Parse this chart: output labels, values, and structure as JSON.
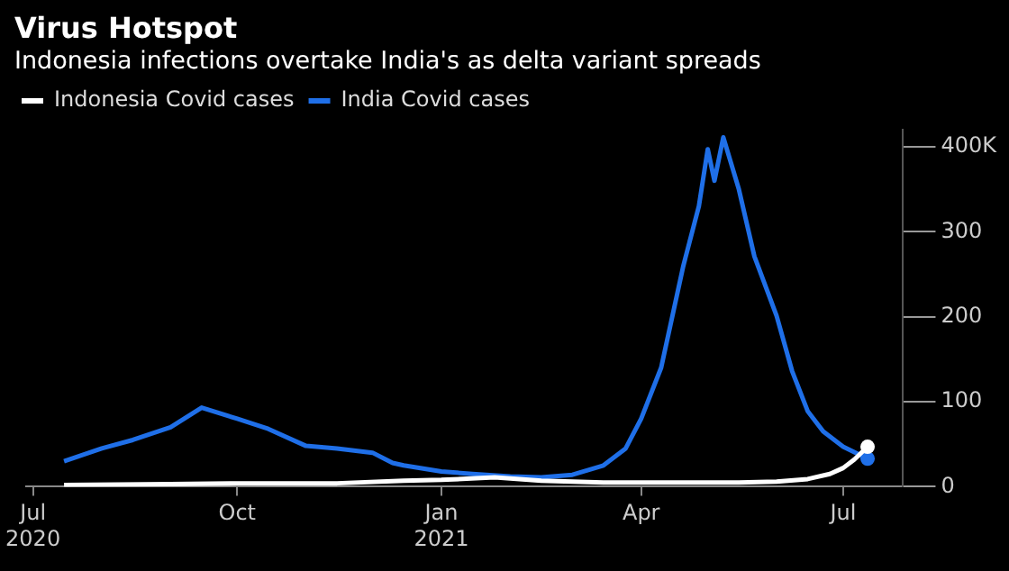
{
  "chart_data": {
    "type": "line",
    "title": "Virus Hotspot",
    "subtitle": "Indonesia infections overtake India's as delta variant spreads",
    "xlim": [
      "2020-06-28",
      "2021-07-28"
    ],
    "xticks": [
      {
        "value": "2020-07-01",
        "label": "Jul 2020"
      },
      {
        "value": "2020-10-01",
        "label": "Oct"
      },
      {
        "value": "2021-01-01",
        "label": "Jan 2021"
      },
      {
        "value": "2021-04-01",
        "label": "Apr"
      },
      {
        "value": "2021-07-01",
        "label": "Jul"
      }
    ],
    "ylim": [
      0,
      420
    ],
    "yticks": [
      0,
      100,
      200,
      300,
      {
        "value": 400,
        "label": "400K"
      }
    ],
    "legend": "top left",
    "grid": false,
    "series": [
      {
        "name": "Indonesia Covid cases",
        "color": "#ffffff",
        "x": [
          "2020-07-15",
          "2020-09-01",
          "2020-10-01",
          "2020-11-15",
          "2020-12-15",
          "2021-01-01",
          "2021-01-25",
          "2021-02-15",
          "2021-03-15",
          "2021-04-15",
          "2021-05-15",
          "2021-06-01",
          "2021-06-15",
          "2021-06-25",
          "2021-07-01",
          "2021-07-06",
          "2021-07-12"
        ],
        "values": [
          2,
          3,
          4,
          4,
          7,
          8,
          11,
          7,
          5,
          5,
          5,
          6,
          9,
          15,
          22,
          32,
          47
        ]
      },
      {
        "name": "India Covid cases",
        "color": "#1f6fe8",
        "x": [
          "2020-07-15",
          "2020-08-01",
          "2020-08-15",
          "2020-09-01",
          "2020-09-15",
          "2020-10-01",
          "2020-10-15",
          "2020-11-01",
          "2020-11-15",
          "2020-12-01",
          "2020-12-10",
          "2020-12-15",
          "2021-01-01",
          "2021-01-15",
          "2021-02-01",
          "2021-02-15",
          "2021-03-01",
          "2021-03-15",
          "2021-03-25",
          "2021-04-01",
          "2021-04-10",
          "2021-04-20",
          "2021-04-27",
          "2021-05-01",
          "2021-05-04",
          "2021-05-08",
          "2021-05-15",
          "2021-05-22",
          "2021-06-01",
          "2021-06-08",
          "2021-06-15",
          "2021-06-22",
          "2021-07-01",
          "2021-07-12"
        ],
        "values": [
          30,
          45,
          55,
          70,
          93,
          80,
          68,
          48,
          45,
          40,
          28,
          25,
          18,
          15,
          12,
          11,
          14,
          25,
          45,
          80,
          140,
          260,
          330,
          397,
          360,
          411,
          350,
          271,
          201,
          136,
          89,
          65,
          47,
          33
        ]
      }
    ]
  }
}
